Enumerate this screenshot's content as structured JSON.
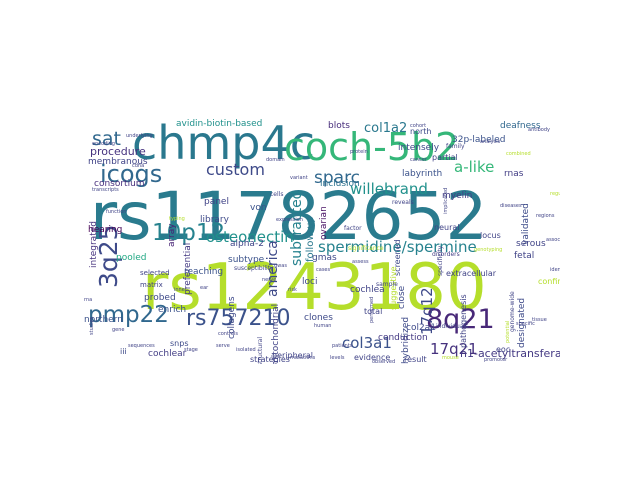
{
  "words": [
    {
      "text": "rs11782652",
      "color": "#2a7b8e"
    },
    {
      "text": "rs1243180",
      "color": "#b5de2b"
    },
    {
      "text": "chmp4c",
      "color": "#2a788e"
    },
    {
      "text": "coch-5b2",
      "color": "#35b779"
    },
    {
      "text": "icogs",
      "color": "#31688e"
    },
    {
      "text": "10p12",
      "color": "#26828e"
    },
    {
      "text": "3q25",
      "color": "#3e4a89"
    },
    {
      "text": "pmp22",
      "color": "#31688e"
    },
    {
      "text": "rs757210",
      "color": "#3b528b"
    },
    {
      "text": "8q21",
      "color": "#482878"
    },
    {
      "text": "17q21",
      "color": "#46327e"
    },
    {
      "text": "17q12",
      "color": "#3e4a89"
    },
    {
      "text": "spermidine/spermine",
      "color": "#26828e"
    },
    {
      "text": "osteonectin",
      "color": "#21918c"
    },
    {
      "text": "sat",
      "color": "#31688e"
    },
    {
      "text": "custom",
      "color": "#3e4a89"
    },
    {
      "text": "sparc",
      "color": "#31688e"
    },
    {
      "text": "willebrand",
      "color": "#21918c"
    },
    {
      "text": "a-like",
      "color": "#35b779"
    },
    {
      "text": "col1a2",
      "color": "#2a788e"
    },
    {
      "text": "col3a1",
      "color": "#3b528b"
    },
    {
      "text": "america",
      "color": "#3e4a89"
    },
    {
      "text": "subtracted",
      "color": "#26828e"
    },
    {
      "text": "follow-up",
      "color": "#2a788e"
    },
    {
      "text": "n1-acetyltransferase",
      "color": "#443983"
    },
    {
      "text": "avidin-biotin-based",
      "color": "#21918c"
    },
    {
      "text": "membranous",
      "color": "#404387"
    },
    {
      "text": "blots",
      "color": "#472d7b"
    },
    {
      "text": "intensely",
      "color": "#3e4a89"
    },
    {
      "text": "32p-labeled",
      "color": "#3b528b"
    },
    {
      "text": "deafness",
      "color": "#31688e"
    },
    {
      "text": "procedure",
      "color": "#46337f"
    },
    {
      "text": "consortium",
      "color": "#472f7d"
    },
    {
      "text": "inclusion",
      "color": "#2c728e"
    },
    {
      "text": "labyrinth",
      "color": "#3b528b"
    },
    {
      "text": "rnas",
      "color": "#433e85"
    },
    {
      "text": "panel",
      "color": "#404387"
    },
    {
      "text": "von",
      "color": "#3b528b"
    },
    {
      "text": "library",
      "color": "#3e4a89"
    },
    {
      "text": "array",
      "color": "#482475"
    },
    {
      "text": "preferential",
      "color": "#443a83"
    },
    {
      "text": "integrated",
      "color": "#46327e"
    },
    {
      "text": "hearing",
      "color": "#440154"
    },
    {
      "text": "alpha-2",
      "color": "#404688"
    },
    {
      "text": "subtype",
      "color": "#3b528b"
    },
    {
      "text": "myelin",
      "color": "#433e85"
    },
    {
      "text": "ovarian",
      "color": "#471063"
    },
    {
      "text": "validated",
      "color": "#3e4c8a"
    },
    {
      "text": "fetal",
      "color": "#404387"
    },
    {
      "text": "serous",
      "color": "#414487"
    },
    {
      "text": "pooled",
      "color": "#22a884"
    },
    {
      "text": "reaching",
      "color": "#3b528b"
    },
    {
      "text": "northern",
      "color": "#3b528b"
    },
    {
      "text": "enrich",
      "color": "#3b528b"
    },
    {
      "text": "probed",
      "color": "#3e4a89"
    },
    {
      "text": "cochlea",
      "color": "#404387"
    },
    {
      "text": "clones",
      "color": "#3e4a89"
    },
    {
      "text": "close",
      "color": "#3e4a89"
    },
    {
      "text": "designated",
      "color": "#3e4a89"
    },
    {
      "text": "hybridized",
      "color": "#3e4a89"
    },
    {
      "text": "conduction",
      "color": "#443983"
    },
    {
      "text": "col2a1",
      "color": "#3e4a89"
    },
    {
      "text": "gmas",
      "color": "#3e4a89"
    },
    {
      "text": "loci",
      "color": "#3e4a89"
    },
    {
      "text": "mitochondrial",
      "color": "#404387"
    },
    {
      "text": "collagens",
      "color": "#3e4a89"
    },
    {
      "text": "cochlear",
      "color": "#433e85"
    },
    {
      "text": "snps",
      "color": "#3e4a89"
    },
    {
      "text": "iii",
      "color": "#3e4a89"
    },
    {
      "text": "north",
      "color": "#3e4a89"
    },
    {
      "text": "selected",
      "color": "#414487"
    },
    {
      "text": "matrix",
      "color": "#414487"
    },
    {
      "text": "screened",
      "color": "#3e4a89"
    },
    {
      "text": "neural",
      "color": "#414487"
    },
    {
      "text": "specificity",
      "color": "#414487"
    },
    {
      "text": "disorders",
      "color": "#433e85"
    },
    {
      "text": "locus",
      "color": "#414487"
    },
    {
      "text": "eoc",
      "color": "#414487"
    },
    {
      "text": "partial",
      "color": "#414487"
    },
    {
      "text": "total",
      "color": "#414487"
    },
    {
      "text": "extracellular",
      "color": "#414487"
    },
    {
      "text": "suggestive",
      "color": "#b5de2b"
    },
    {
      "text": "structural",
      "color": "#414487"
    },
    {
      "text": "strategies",
      "color": "#414487"
    },
    {
      "text": "peripheral",
      "color": "#414487"
    },
    {
      "text": "result",
      "color": "#414487"
    },
    {
      "text": "confirm",
      "color": "#b5de2b"
    },
    {
      "text": "susceptibility",
      "color": "#414487"
    },
    {
      "text": "evidence",
      "color": "#414487"
    },
    {
      "text": "individuals",
      "color": "#414487"
    },
    {
      "text": "pathogenesis",
      "color": "#414487"
    },
    {
      "text": "genome-wide",
      "color": "#414487"
    },
    {
      "text": "significance",
      "color": "#b5de2b"
    },
    {
      "text": "assess",
      "color": "#414487"
    },
    {
      "text": "sample",
      "color": "#414487"
    },
    {
      "text": "cases",
      "color": "#414487"
    },
    {
      "text": "performed",
      "color": "#414487"
    },
    {
      "text": "cohort",
      "color": "#414487"
    },
    {
      "text": "genotyping",
      "color": "#b5de2b"
    },
    {
      "text": "mutations",
      "color": "#414487"
    },
    {
      "text": "factor",
      "color": "#414487"
    },
    {
      "text": "cells",
      "color": "#414487"
    },
    {
      "text": "reveals",
      "color": "#414487"
    },
    {
      "text": "family",
      "color": "#414487"
    },
    {
      "text": "analysis",
      "color": "#414487"
    },
    {
      "text": "implicated",
      "color": "#414487"
    },
    {
      "text": "combined",
      "color": "#b5de2b"
    },
    {
      "text": "domain",
      "color": "#414487"
    },
    {
      "text": "protein",
      "color": "#414487"
    },
    {
      "text": "cancer",
      "color": "#414487"
    },
    {
      "text": "studies",
      "color": "#414487"
    },
    {
      "text": "sequences",
      "color": "#414487"
    },
    {
      "text": "underlying",
      "color": "#414487"
    },
    {
      "text": "encoding",
      "color": "#414487"
    },
    {
      "text": "transcripts",
      "color": "#414487"
    },
    {
      "text": "antibody",
      "color": "#414487"
    },
    {
      "text": "rna",
      "color": "#414487"
    },
    {
      "text": "function",
      "color": "#414487"
    },
    {
      "text": "gene",
      "color": "#414487"
    },
    {
      "text": "expression",
      "color": "#414487"
    },
    {
      "text": "variant",
      "color": "#414487"
    },
    {
      "text": "risk",
      "color": "#414487"
    },
    {
      "text": "human",
      "color": "#414487"
    },
    {
      "text": "patients",
      "color": "#414487"
    },
    {
      "text": "isolated",
      "color": "#414487"
    },
    {
      "text": "serve",
      "color": "#414487"
    },
    {
      "text": "potential",
      "color": "#b5de2b"
    },
    {
      "text": "specific",
      "color": "#414487"
    },
    {
      "text": "tissue",
      "color": "#414487"
    },
    {
      "text": "identified",
      "color": "#414487"
    },
    {
      "text": "associations",
      "color": "#414487"
    },
    {
      "text": "regions",
      "color": "#414487"
    },
    {
      "text": "regulation",
      "color": "#b5de2b"
    },
    {
      "text": "diseases",
      "color": "#414487"
    },
    {
      "text": "promoter",
      "color": "#414487"
    },
    {
      "text": "observed",
      "color": "#414487"
    },
    {
      "text": "levels",
      "color": "#414487"
    },
    {
      "text": "mouse",
      "color": "#b5de2b"
    },
    {
      "text": "controls",
      "color": "#414487"
    },
    {
      "text": "stage",
      "color": "#414487"
    },
    {
      "text": "inner",
      "color": "#414487"
    },
    {
      "text": "ear",
      "color": "#414487"
    },
    {
      "text": "nerve",
      "color": "#414487"
    },
    {
      "text": "gwas",
      "color": "#414487"
    },
    {
      "text": "cdna",
      "color": "#414487"
    },
    {
      "text": "typing",
      "color": "#b5de2b"
    }
  ]
}
